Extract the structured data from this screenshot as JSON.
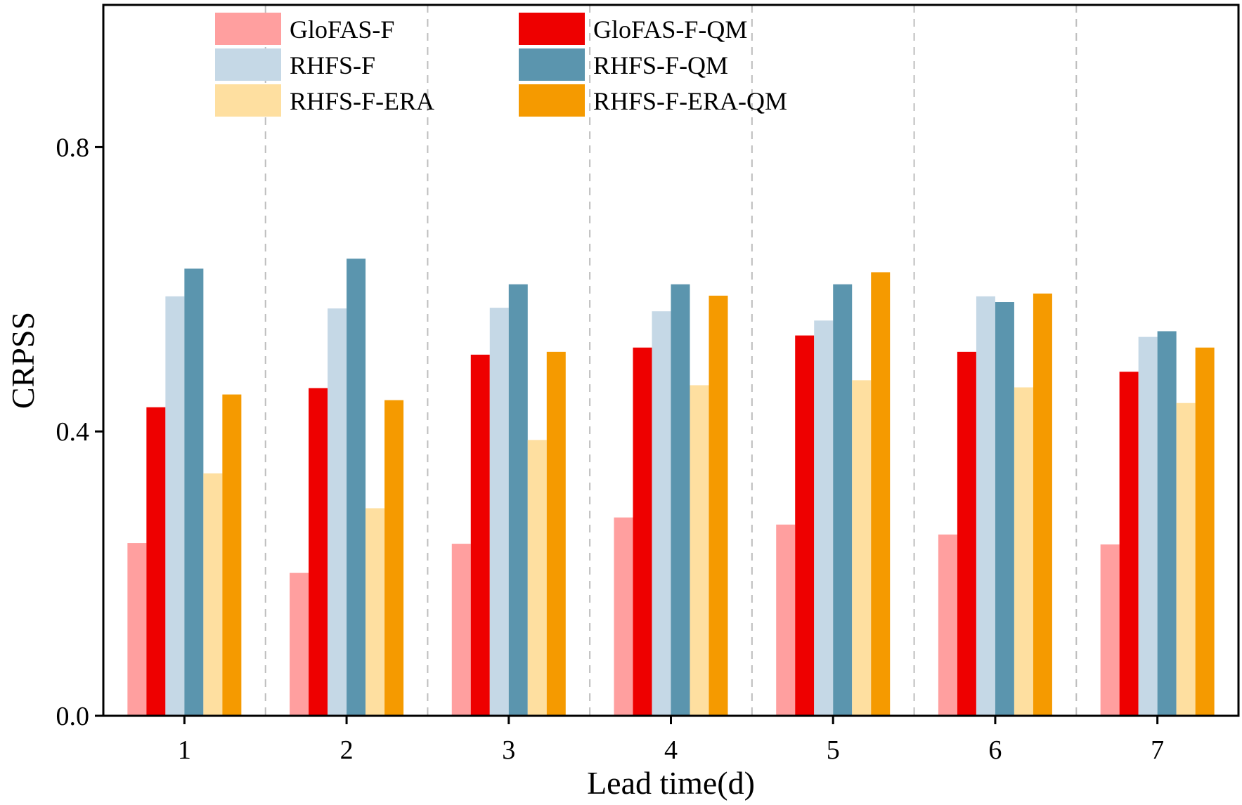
{
  "chart_data": {
    "type": "bar",
    "title": "",
    "xlabel": "Lead time(d)",
    "ylabel": "CRPSS",
    "categories": [
      "1",
      "2",
      "3",
      "4",
      "5",
      "6",
      "7"
    ],
    "ylim": [
      0.0,
      1.0
    ],
    "yticks": [
      0.0,
      0.4,
      0.8
    ],
    "ytick_labels": [
      "0.0",
      "0.4",
      "0.8"
    ],
    "grid": "vertical dashed separators between categories",
    "legend_position": "top",
    "series": [
      {
        "name": "GloFAS-F",
        "color": "#ff9f9f",
        "values": [
          0.243,
          0.201,
          0.242,
          0.279,
          0.269,
          0.255,
          0.241
        ]
      },
      {
        "name": "GloFAS-F-QM",
        "color": "#ee0000",
        "values": [
          0.434,
          0.461,
          0.508,
          0.518,
          0.535,
          0.512,
          0.484
        ]
      },
      {
        "name": "RHFS-F",
        "color": "#c5d8e6",
        "values": [
          0.59,
          0.573,
          0.574,
          0.569,
          0.556,
          0.59,
          0.533
        ]
      },
      {
        "name": "RHFS-F-QM",
        "color": "#5b95ae",
        "values": [
          0.629,
          0.643,
          0.607,
          0.607,
          0.607,
          0.582,
          0.541
        ]
      },
      {
        "name": "RHFS-F-ERA",
        "color": "#fedfa0",
        "values": [
          0.341,
          0.292,
          0.388,
          0.465,
          0.472,
          0.462,
          0.44
        ]
      },
      {
        "name": "RHFS-F-ERA-QM",
        "color": "#f59a00",
        "values": [
          0.452,
          0.444,
          0.512,
          0.591,
          0.624,
          0.594,
          0.518
        ]
      }
    ]
  }
}
